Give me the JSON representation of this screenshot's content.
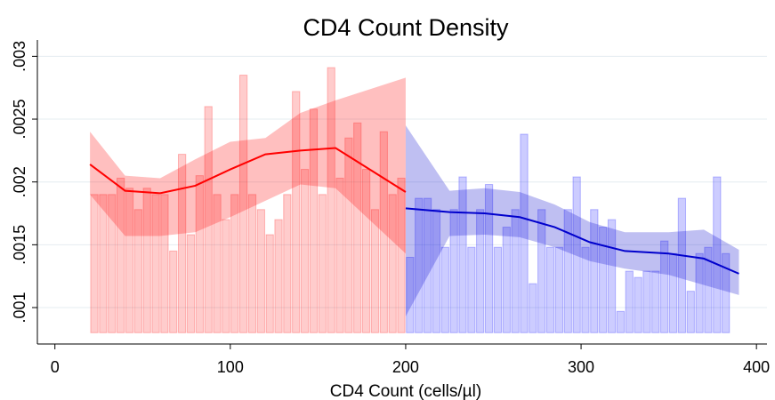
{
  "chart_data": {
    "type": "histogram-fit",
    "title": "CD4 Count Density",
    "x_label": "CD4 Count (cells/µl)",
    "xlim": [
      -10,
      406
    ],
    "ylim": [
      0.00071,
      0.00313
    ],
    "xticks": [
      0,
      100,
      200,
      300,
      400
    ],
    "yticks": [
      {
        "value": 0.001,
        "label": ".001"
      },
      {
        "value": 0.0015,
        "label": ".0015"
      },
      {
        "value": 0.002,
        "label": ".002"
      },
      {
        "value": 0.0025,
        "label": ".0025"
      },
      {
        "value": 0.003,
        "label": ".003"
      }
    ],
    "grid": true,
    "bar_base": 0.0008,
    "histograms": [
      {
        "color": "#ff0000",
        "bins": [
          20,
          25,
          30,
          35,
          40,
          45,
          50,
          55,
          60,
          65,
          70,
          75,
          80,
          85,
          90,
          95,
          100,
          105,
          110,
          115,
          120,
          125,
          130,
          135,
          140,
          145,
          150,
          155,
          160,
          165,
          170,
          175,
          180,
          185,
          190,
          195,
          200
        ],
        "values": [
          0.0019,
          0.0019,
          0.0019,
          0.00203,
          0.00195,
          0.00178,
          0.00195,
          0.0019,
          0.0019,
          0.00145,
          0.00222,
          0.00158,
          0.00205,
          0.0026,
          0.0019,
          0.0017,
          0.0019,
          0.00285,
          0.0019,
          0.00178,
          0.00158,
          0.0017,
          0.0019,
          0.00272,
          0.0021,
          0.00258,
          0.0019,
          0.00291,
          0.00203,
          0.00235,
          0.00247,
          0.0021,
          0.00178,
          0.0024,
          0.0019,
          0.00203
        ]
      },
      {
        "color": "#0000ff",
        "bins": [
          200,
          205,
          210,
          215,
          220,
          225,
          230,
          235,
          240,
          245,
          250,
          255,
          260,
          265,
          270,
          275,
          280,
          285,
          290,
          295,
          300,
          305,
          310,
          315,
          320,
          325,
          330,
          335,
          340,
          345,
          350,
          355,
          360,
          365,
          370,
          375,
          380,
          385
        ],
        "values": [
          0.0014,
          0.00187,
          0.00187,
          0.00178,
          0.00148,
          0.00178,
          0.00204,
          0.00148,
          0.00178,
          0.00198,
          0.00148,
          0.00164,
          0.00178,
          0.00238,
          0.00119,
          0.00178,
          0.00148,
          0.00148,
          0.00178,
          0.00204,
          0.00148,
          0.00178,
          0.00164,
          0.0017,
          0.00097,
          0.00129,
          0.00124,
          0.00129,
          0.00129,
          0.00153,
          0.00143,
          0.00187,
          0.00113,
          0.00143,
          0.00148,
          0.00204,
          0.00143
        ]
      }
    ],
    "fits": [
      {
        "color": "#ff0000",
        "x": [
          20,
          40,
          60,
          80,
          100,
          120,
          140,
          160,
          200
        ],
        "values": [
          0.00214,
          0.00193,
          0.00191,
          0.00197,
          0.0021,
          0.00222,
          0.00225,
          0.00227,
          0.00192
        ],
        "lower": [
          0.0019,
          0.00157,
          0.00157,
          0.0016,
          0.00172,
          0.00185,
          0.00198,
          0.00195,
          0.00143
        ],
        "upper": [
          0.0024,
          0.00205,
          0.00203,
          0.00218,
          0.00232,
          0.00235,
          0.00255,
          0.00265,
          0.00283
        ]
      },
      {
        "color": "#0000cc",
        "x": [
          200,
          225,
          245,
          265,
          285,
          305,
          325,
          350,
          370,
          390
        ],
        "values": [
          0.00179,
          0.00176,
          0.00175,
          0.00172,
          0.00164,
          0.00152,
          0.00145,
          0.00143,
          0.00139,
          0.00127
        ],
        "lower": [
          0.00093,
          0.00157,
          0.00158,
          0.00156,
          0.00148,
          0.00137,
          0.00131,
          0.00126,
          0.00118,
          0.0011
        ],
        "upper": [
          0.00245,
          0.00193,
          0.00195,
          0.00192,
          0.00182,
          0.00168,
          0.0016,
          0.0016,
          0.00162,
          0.00146
        ]
      }
    ]
  }
}
